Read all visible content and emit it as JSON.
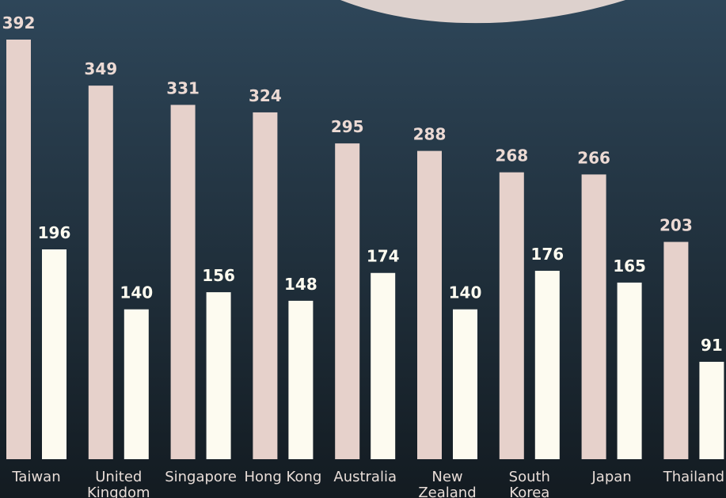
{
  "chart_data": {
    "type": "bar",
    "categories": [
      "Taiwan",
      "United Kingdom",
      "Singapore",
      "Hong Kong",
      "Australia",
      "New Zealand",
      "South Korea",
      "Japan",
      "Thailand"
    ],
    "series": [
      {
        "color": "#e6d1cb",
        "values": [
          392,
          349,
          331,
          324,
          295,
          288,
          268,
          266,
          203
        ]
      },
      {
        "color": "#fdfbf0",
        "values": [
          196,
          140,
          156,
          148,
          174,
          140,
          176,
          165,
          91
        ]
      }
    ],
    "ylim": [
      0,
      392
    ]
  }
}
